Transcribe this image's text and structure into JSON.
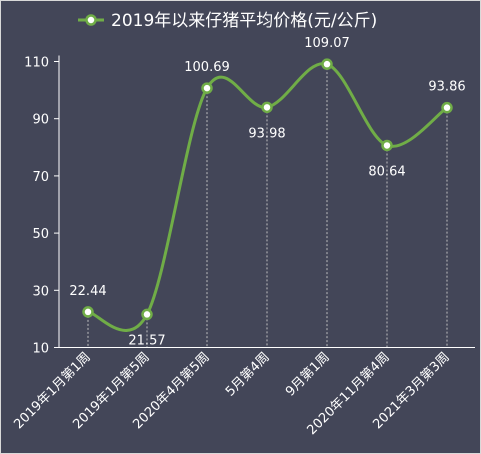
{
  "chart_data": {
    "type": "line",
    "title": "2019年以来仔猪平均价格(元/公斤)",
    "categories": [
      "2019年1月第1周",
      "2019年1月第5周",
      "2020年4月第5周",
      "5月第4周",
      "9月第1周",
      "2020年11月第4周",
      "2021年3月第3周"
    ],
    "series": [
      {
        "name": "2019年以来仔猪平均价格(元/公斤)",
        "values": [
          22.44,
          21.57,
          100.69,
          93.98,
          109.07,
          80.64,
          93.86
        ],
        "labels": [
          "22.44",
          "21.57",
          "100.69",
          "93.98",
          "109.07",
          "80.64",
          "93.86"
        ]
      }
    ],
    "yticks": [
      10,
      30,
      50,
      70,
      90,
      110
    ],
    "ylim": [
      10,
      115
    ],
    "grid": false,
    "dashed_drop_lines": true,
    "legend_position": "top-center",
    "smooth": true,
    "colors": {
      "background": "#434658",
      "line": "#70ad47",
      "marker_fill": "#ffffff",
      "text": "#ffffff",
      "axis": "#ffffff",
      "drop_line": "#bfbfbf"
    }
  }
}
